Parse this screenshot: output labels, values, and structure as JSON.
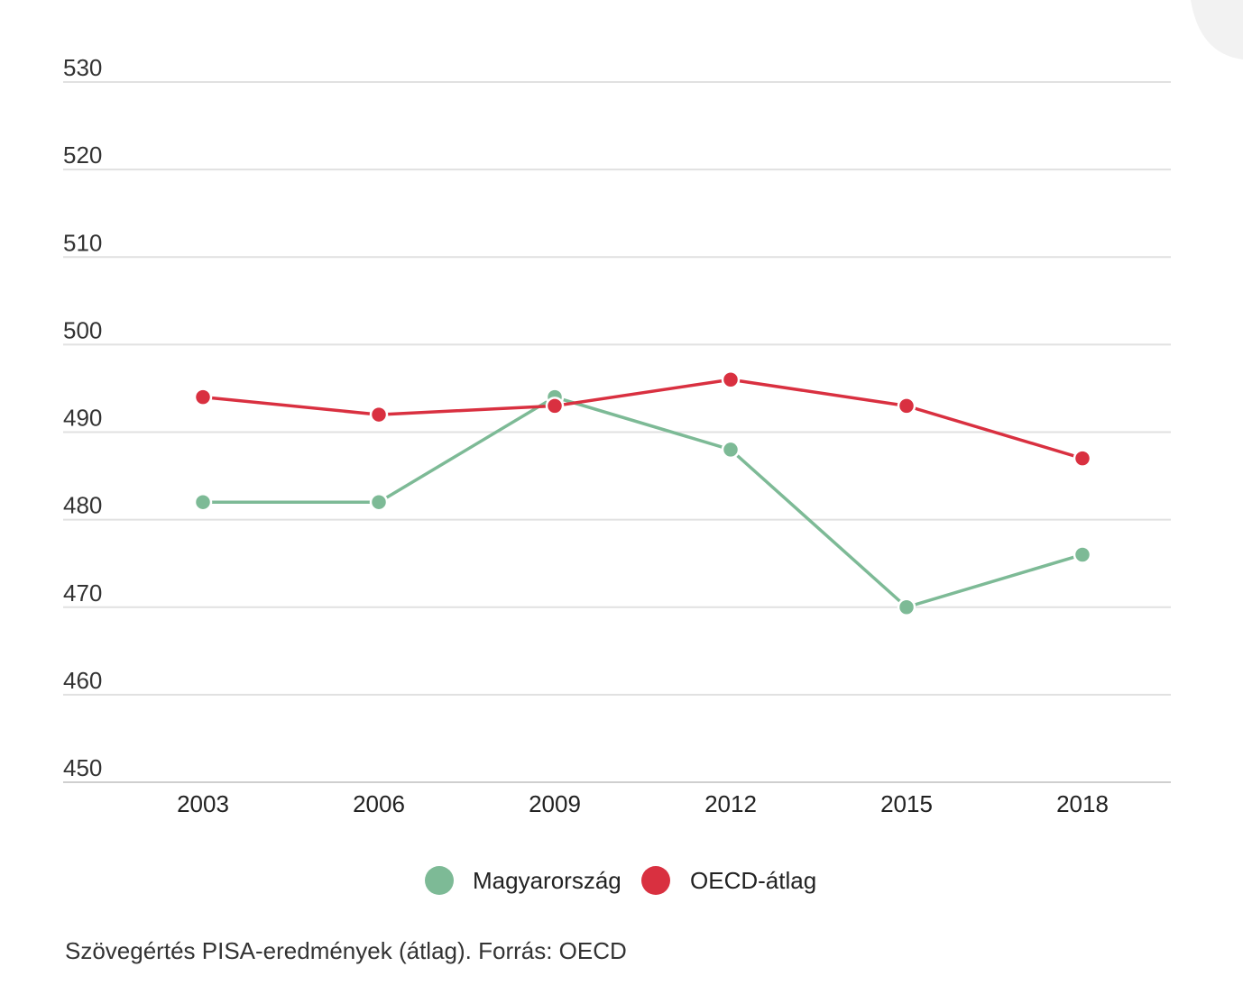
{
  "chart_data": {
    "type": "line",
    "title": "",
    "xlabel": "",
    "ylabel": "",
    "x": [
      "2003",
      "2006",
      "2009",
      "2012",
      "2015",
      "2018"
    ],
    "ylim": [
      450,
      530
    ],
    "yticks": [
      "530",
      "520",
      "510",
      "500",
      "490",
      "480",
      "470",
      "460",
      "450"
    ],
    "ytick_values": [
      530,
      520,
      510,
      500,
      490,
      480,
      470,
      460,
      450
    ],
    "grid": "horizontal",
    "legend_position": "bottom",
    "series": [
      {
        "name": "Magyarország",
        "color": "#7dba96",
        "values": [
          482,
          482,
          494,
          488,
          470,
          476
        ]
      },
      {
        "name": "OECD-átlag",
        "color": "#d93040",
        "values": [
          494,
          492,
          493,
          496,
          493,
          487
        ]
      }
    ],
    "footnote": "Szövegértés PISA-eredmények (átlag). Forrás: OECD"
  }
}
